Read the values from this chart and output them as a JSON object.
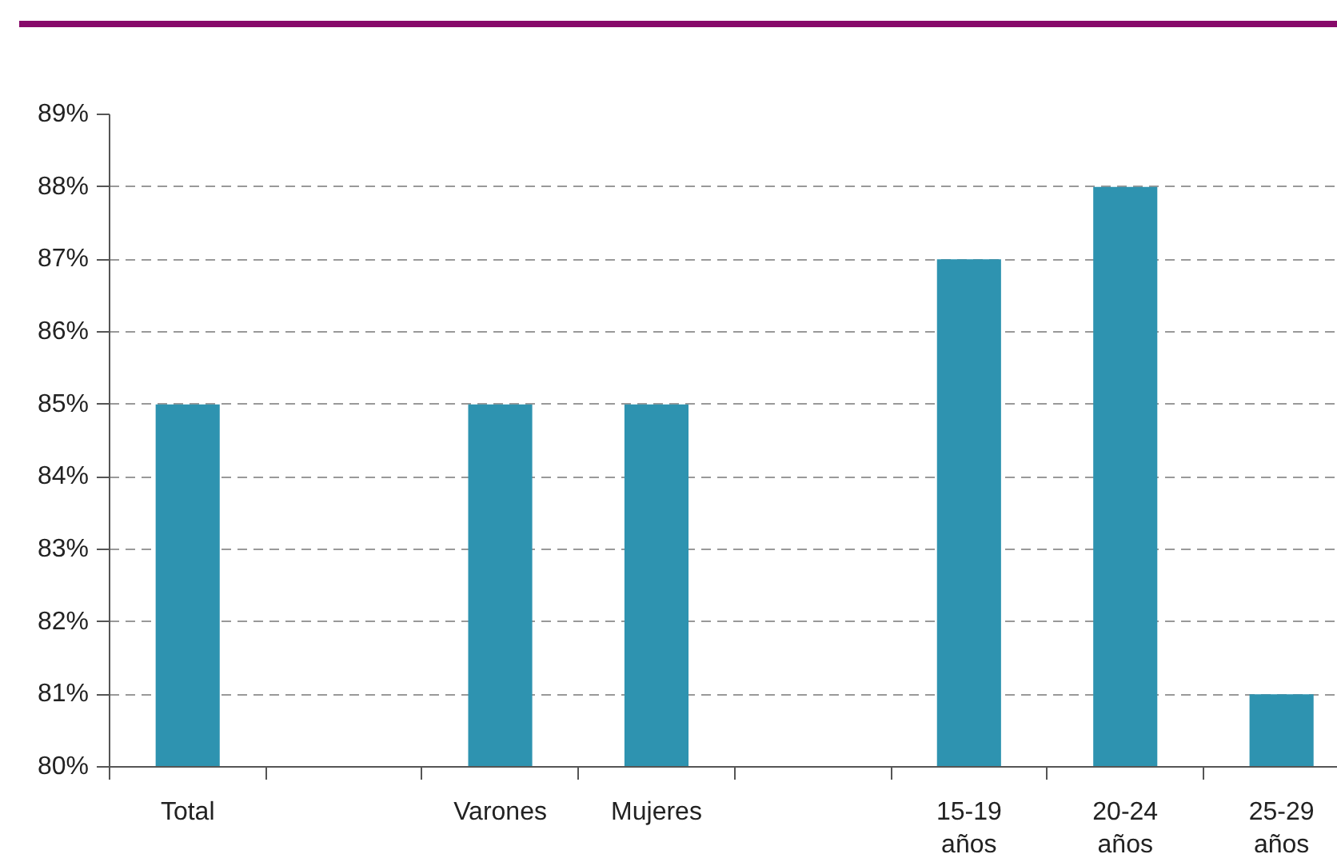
{
  "chart_data": {
    "type": "bar",
    "categories": [
      "Total",
      null,
      "Varones",
      "Mujeres",
      null,
      "15-19 años",
      "20-24 años",
      "25-29 años"
    ],
    "values": [
      85,
      null,
      85,
      85,
      null,
      87,
      88,
      81
    ],
    "color": "#2e93b0",
    "ylim": [
      80,
      89
    ],
    "yticks": [
      {
        "value": 80,
        "label": "80%"
      },
      {
        "value": 81,
        "label": "81%"
      },
      {
        "value": 82,
        "label": "82%"
      },
      {
        "value": 83,
        "label": "83%"
      },
      {
        "value": 84,
        "label": "84%"
      },
      {
        "value": 85,
        "label": "85%"
      },
      {
        "value": 86,
        "label": "86%"
      },
      {
        "value": 87,
        "label": "87%"
      },
      {
        "value": 88,
        "label": "88%"
      },
      {
        "value": 89,
        "label": "89%"
      }
    ],
    "grid": "y"
  }
}
